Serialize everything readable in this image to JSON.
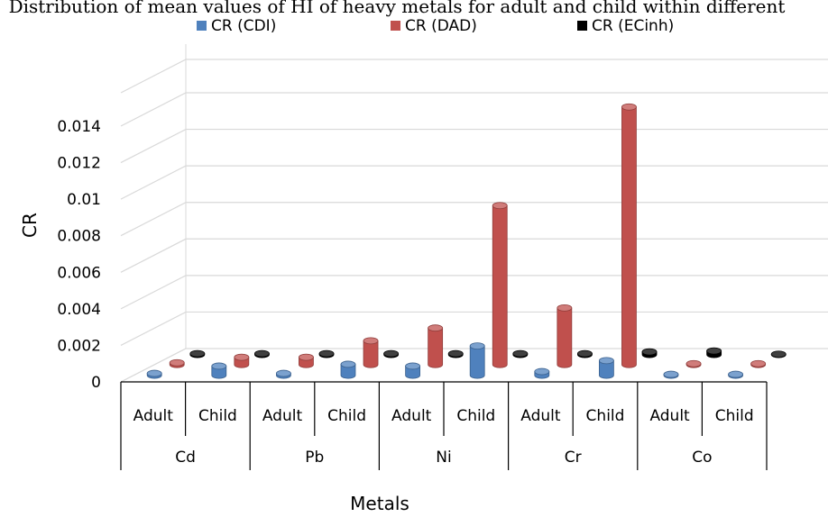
{
  "chart_data": {
    "type": "bar",
    "title": "Distribution of mean values of HI of heavy metals for adult and child within different",
    "xlabel": "Metals",
    "ylabel": "CR",
    "ylim": [
      0,
      0.014
    ],
    "yticks": [
      "0",
      "0.002",
      "0.004",
      "0.006",
      "0.008",
      "0.01",
      "0.012",
      "0.014"
    ],
    "groups": [
      "Cd",
      "Pb",
      "Ni",
      "Cr",
      "Co"
    ],
    "categories": [
      "Adult",
      "Child",
      "Adult",
      "Child",
      "Adult",
      "Child",
      "Adult",
      "Child",
      "Adult",
      "Child"
    ],
    "series": [
      {
        "name": "CR (CDI)",
        "color": "#4f81bd",
        "values": [
          0.0001,
          0.0005,
          0.0001,
          0.0006,
          0.0005,
          0.0016,
          0.0002,
          0.0008,
          5e-05,
          5e-05
        ]
      },
      {
        "name": "CR (DAD)",
        "color": "#c0504d",
        "values": [
          0.0001,
          0.0004,
          0.0004,
          0.0013,
          0.002,
          0.0087,
          0.0031,
          0.0141,
          5e-05,
          5e-05
        ]
      },
      {
        "name": "CR (ECinh)",
        "color": "#000000",
        "values": [
          5e-05,
          5e-05,
          5e-05,
          5e-05,
          5e-05,
          5e-05,
          5e-05,
          0.00015,
          0.0002,
          2e-05
        ]
      }
    ],
    "grid": true,
    "legend": "top"
  }
}
